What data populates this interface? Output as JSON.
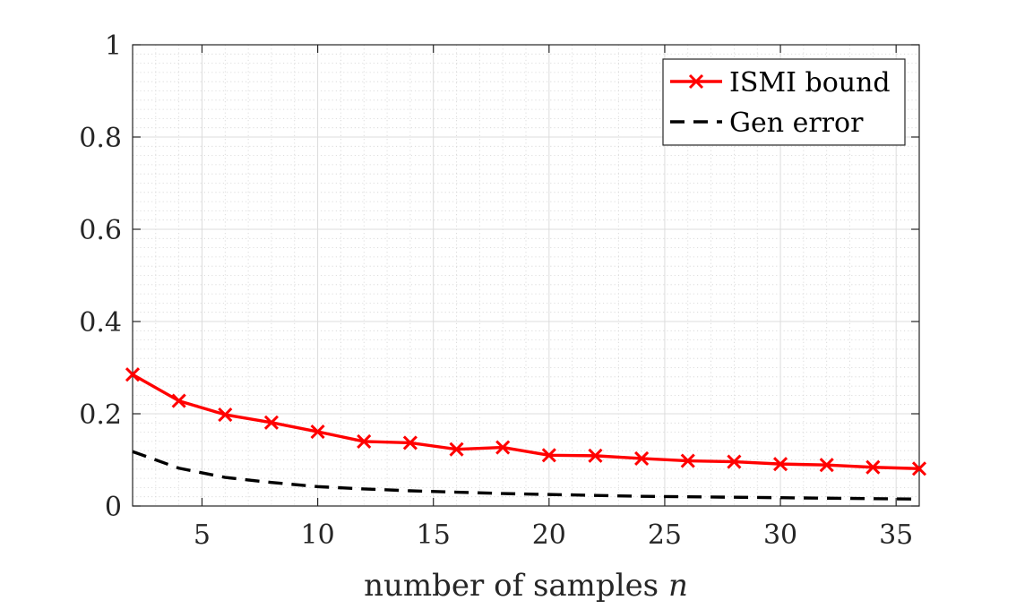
{
  "chart_data": {
    "type": "line",
    "title": "",
    "xlabel": "number of samples",
    "xlabel_var": "n",
    "ylabel": "",
    "xlim": [
      2,
      36
    ],
    "ylim": [
      0,
      1
    ],
    "xticks": [
      5,
      10,
      15,
      20,
      25,
      30,
      35
    ],
    "yticks": [
      0,
      0.2,
      0.4,
      0.6,
      0.8,
      1
    ],
    "ytick_labels": [
      "0",
      "0.2",
      "0.4",
      "0.6",
      "0.8",
      "1"
    ],
    "grid": true,
    "minor_grid": true,
    "legend_position": "top-right",
    "x": [
      2,
      4,
      6,
      8,
      10,
      12,
      14,
      16,
      18,
      20,
      22,
      24,
      26,
      28,
      30,
      32,
      34,
      36
    ],
    "series": [
      {
        "name": "ISMI bound",
        "color": "#ff0000",
        "style": "solid",
        "marker": "x",
        "values": [
          0.285,
          0.228,
          0.198,
          0.181,
          0.161,
          0.14,
          0.137,
          0.123,
          0.127,
          0.11,
          0.109,
          0.103,
          0.098,
          0.096,
          0.091,
          0.089,
          0.084,
          0.081
        ]
      },
      {
        "name": "Gen error",
        "color": "#000000",
        "style": "dashed",
        "marker": "none",
        "values": [
          0.118,
          0.082,
          0.062,
          0.051,
          0.042,
          0.037,
          0.033,
          0.03,
          0.027,
          0.025,
          0.023,
          0.021,
          0.02,
          0.019,
          0.018,
          0.017,
          0.016,
          0.015
        ]
      }
    ]
  }
}
